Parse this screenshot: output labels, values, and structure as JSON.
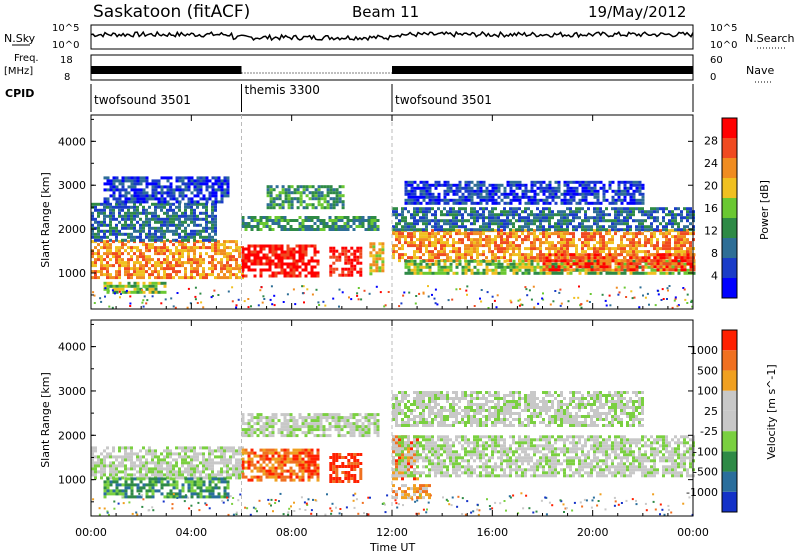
{
  "header": {
    "station": "Saskatoon (fitACF)",
    "beam": "Beam 11",
    "date": "19/May/2012"
  },
  "top_panels": {
    "nsky_label": "N.Sky",
    "nsky_ticks": [
      "10^5",
      "10^0"
    ],
    "nsearch_label": "N.Search",
    "nsearch_ticks": [
      "10^5",
      "10^0"
    ],
    "freq_label_1": "Freq.",
    "freq_label_2": "[MHz]",
    "freq_ticks": [
      "18",
      "8"
    ],
    "nave_label": "Nave",
    "nave_ticks": [
      "60",
      "0"
    ],
    "cpid_label": "CPID",
    "cpid_segments": [
      {
        "label": "twofsound 3501",
        "start_hr": 0,
        "end_hr": 6
      },
      {
        "label": "themis 3300",
        "start_hr": 6,
        "end_hr": 12
      },
      {
        "label": "twofsound 3501",
        "start_hr": 12,
        "end_hr": 24
      }
    ]
  },
  "chart_data": [
    {
      "type": "heatmap",
      "panel": "power",
      "x_axis": {
        "label": "Time UT",
        "range_hr": [
          0,
          24
        ],
        "ticks": [
          "00:00",
          "04:00",
          "08:00",
          "12:00",
          "16:00",
          "20:00",
          "00:00"
        ]
      },
      "y_axis": {
        "label": "Slant Range [km]",
        "range": [
          180,
          4600
        ],
        "ticks": [
          "1000",
          "2000",
          "3000",
          "4000"
        ]
      },
      "colorbar": {
        "label": "Power [dB]",
        "ticks": [
          "28",
          "24",
          "20",
          "16",
          "12",
          "8",
          "4"
        ],
        "colors": [
          "#0000ff",
          "#1a3cc8",
          "#2e6e96",
          "#2e8a46",
          "#6ac832",
          "#f0c020",
          "#f08c20",
          "#f04a20",
          "#ff0000"
        ]
      },
      "bands": [
        {
          "t0": 0.0,
          "t1": 6.0,
          "r0": 900,
          "r1": 1750,
          "level": 6
        },
        {
          "t0": 0.5,
          "t1": 3.0,
          "r0": 550,
          "r1": 800,
          "level": 4
        },
        {
          "t0": 0.0,
          "t1": 5.0,
          "r0": 1750,
          "r1": 2600,
          "level": 2
        },
        {
          "t0": 0.5,
          "t1": 5.5,
          "r0": 2600,
          "r1": 3200,
          "level": 1
        },
        {
          "t0": 6.0,
          "t1": 9.0,
          "r0": 950,
          "r1": 1650,
          "level": 8
        },
        {
          "t0": 9.5,
          "t1": 10.8,
          "r0": 950,
          "r1": 1600,
          "level": 8
        },
        {
          "t0": 11.1,
          "t1": 11.6,
          "r0": 1000,
          "r1": 1700,
          "level": 5
        },
        {
          "t0": 6.0,
          "t1": 11.5,
          "r0": 2000,
          "r1": 2300,
          "level": 3
        },
        {
          "t0": 7.0,
          "t1": 10.0,
          "r0": 2500,
          "r1": 3000,
          "level": 3
        },
        {
          "t0": 12.0,
          "t1": 24.0,
          "r0": 1300,
          "r1": 2000,
          "level": 6
        },
        {
          "t0": 12.5,
          "t1": 24.0,
          "r0": 1000,
          "r1": 1300,
          "level": 4
        },
        {
          "t0": 12.0,
          "t1": 24.0,
          "r0": 2000,
          "r1": 2500,
          "level": 2
        },
        {
          "t0": 12.5,
          "t1": 22.0,
          "r0": 2600,
          "r1": 3100,
          "level": 1
        },
        {
          "t0": 18.0,
          "t1": 24.0,
          "r0": 1050,
          "r1": 1450,
          "level": 7
        }
      ]
    },
    {
      "type": "heatmap",
      "panel": "velocity",
      "x_axis": {
        "label": "Time UT",
        "range_hr": [
          0,
          24
        ],
        "ticks": [
          "00:00",
          "04:00",
          "08:00",
          "12:00",
          "16:00",
          "20:00",
          "00:00"
        ]
      },
      "y_axis": {
        "label": "Slant Range [km]",
        "range": [
          180,
          4600
        ],
        "ticks": [
          "1000",
          "2000",
          "3000",
          "4000"
        ]
      },
      "colorbar": {
        "label": "Velocity [m s^-1]",
        "ticks": [
          "1000",
          "500",
          "100",
          "25",
          "-25",
          "-100",
          "-500",
          "-1000"
        ],
        "colors": [
          "#1432c8",
          "#2a6e9c",
          "#2e8a46",
          "#7ad040",
          "#c8c8c8",
          "#c8c8c8",
          "#f0a020",
          "#f07020",
          "#ff2000"
        ]
      },
      "bands": [
        {
          "t0": 0.0,
          "t1": 6.0,
          "r0": 1050,
          "r1": 1750,
          "level": 4
        },
        {
          "t0": 0.5,
          "t1": 5.5,
          "r0": 600,
          "r1": 1050,
          "level": 2
        },
        {
          "t0": 6.0,
          "t1": 9.0,
          "r0": 1000,
          "r1": 1700,
          "level": 7
        },
        {
          "t0": 9.5,
          "t1": 10.8,
          "r0": 950,
          "r1": 1600,
          "level": 8
        },
        {
          "t0": 6.0,
          "t1": 11.5,
          "r0": 2000,
          "r1": 2500,
          "level": 4
        },
        {
          "t0": 12.0,
          "t1": 13.0,
          "r0": 1000,
          "r1": 2000,
          "level": 7
        },
        {
          "t0": 12.0,
          "t1": 24.0,
          "r0": 1100,
          "r1": 2000,
          "level": 4
        },
        {
          "t0": 12.0,
          "t1": 22.0,
          "r0": 2200,
          "r1": 3000,
          "level": 4
        },
        {
          "t0": 12.0,
          "t1": 13.5,
          "r0": 600,
          "r1": 900,
          "level": 6
        }
      ]
    }
  ],
  "xlabel": "Time UT"
}
